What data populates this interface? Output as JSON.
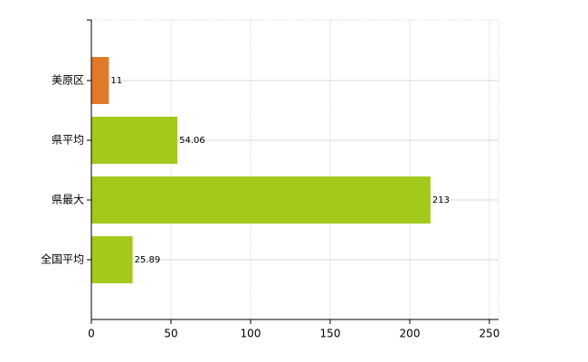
{
  "chart_data": {
    "type": "bar",
    "orientation": "horizontal",
    "categories": [
      "美原区",
      "県平均",
      "県最大",
      "全国平均"
    ],
    "values": [
      11,
      54.06,
      213,
      25.89
    ],
    "colors": [
      "#e07a28",
      "#a3c91c",
      "#a3c91c",
      "#a3c91c"
    ],
    "xlim": [
      0,
      250
    ],
    "xticks": [
      0,
      50,
      100,
      150,
      200,
      250
    ],
    "grid": true
  }
}
